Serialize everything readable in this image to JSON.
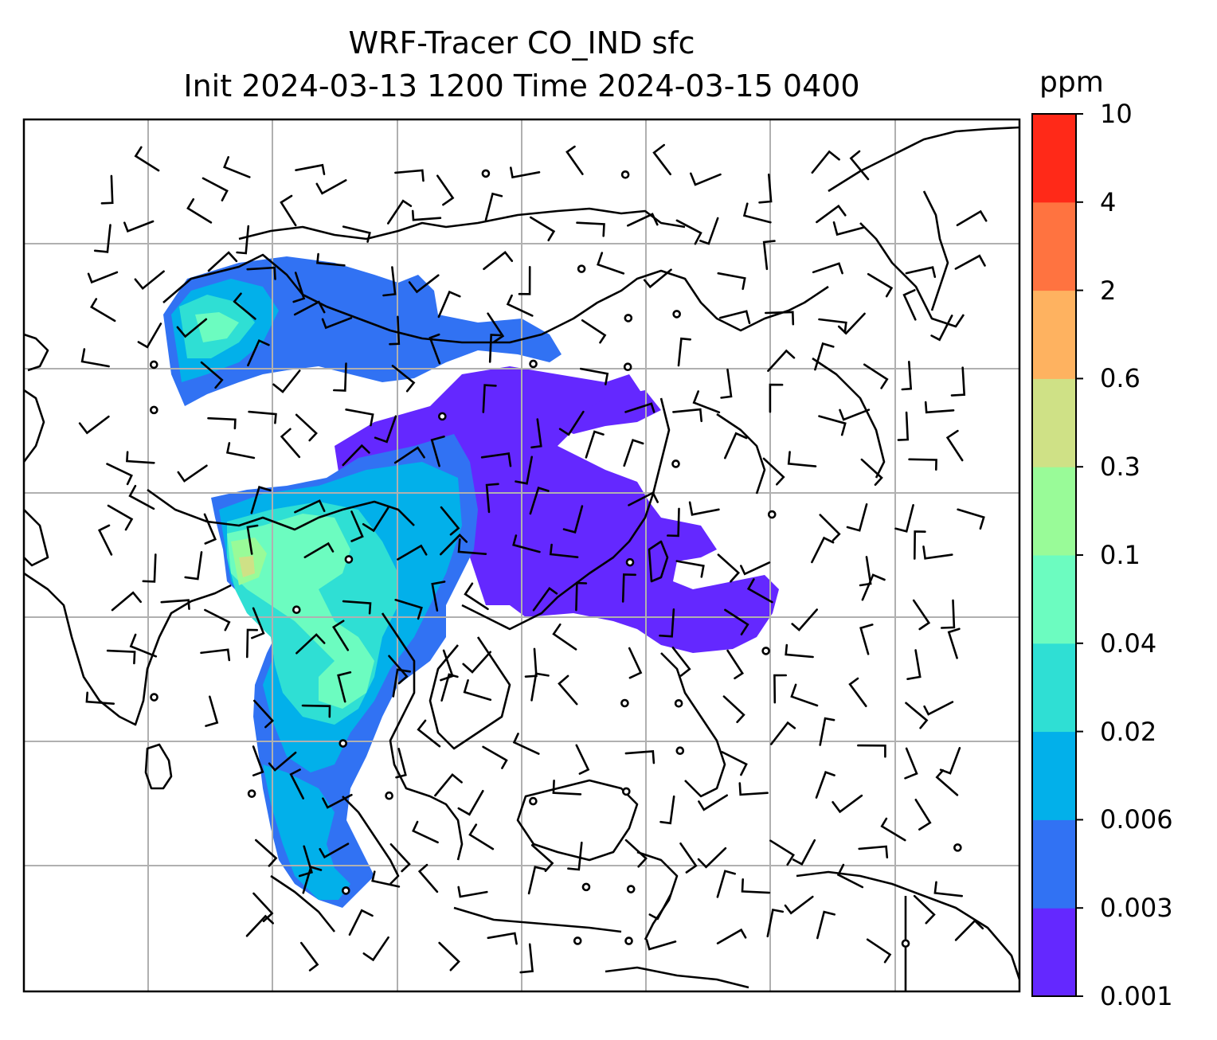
{
  "title": {
    "line1": "WRF-Tracer CO_IND sfc",
    "line2": "Init 2024-03-13 1200 Time 2024-03-15 0400"
  },
  "colorbar": {
    "unit": "ppm",
    "levels": [
      "0.001",
      "0.003",
      "0.006",
      "0.02",
      "0.04",
      "0.1",
      "0.3",
      "0.6",
      "2",
      "4",
      "10"
    ],
    "colors": [
      "#6428ff",
      "#3172f3",
      "#02b0ea",
      "#2fdfd4",
      "#6cfcc0",
      "#99fb98",
      "#cfe186",
      "#feb260",
      "#ff7340",
      "#ff2918"
    ]
  },
  "chart_data": {
    "type": "heatmap",
    "title": "WRF-Tracer CO_IND sfc",
    "subtitle": "Init 2024-03-13 1200 Time 2024-03-15 0400",
    "variable": "CO_IND surface tracer concentration",
    "unit": "ppm",
    "colorbar_ticks": [
      0.001,
      0.003,
      0.006,
      0.02,
      0.04,
      0.1,
      0.3,
      0.6,
      2,
      4,
      10
    ],
    "overlays": [
      "coastlines",
      "country borders",
      "wind barbs",
      "calm-wind circles",
      "lat/lon gridlines"
    ],
    "grid": true,
    "legend": "right colorbar"
  }
}
